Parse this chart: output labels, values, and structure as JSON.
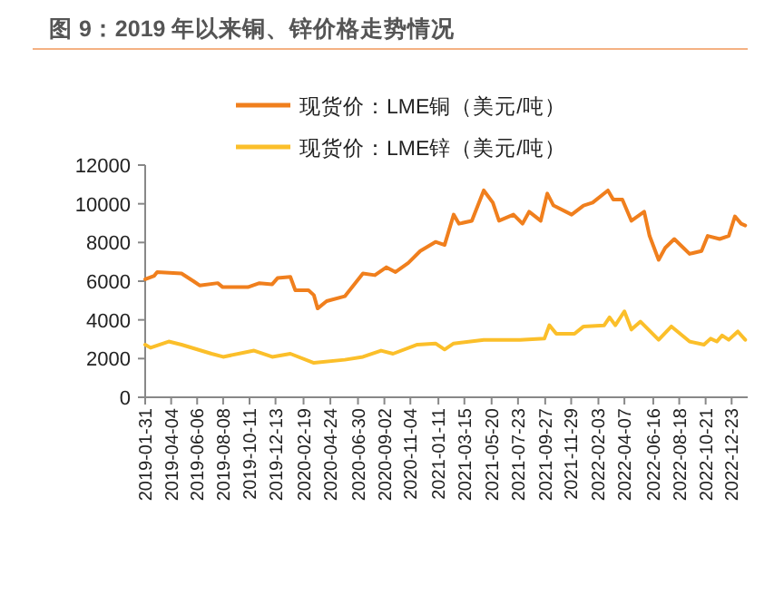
{
  "chart_data": {
    "type": "line",
    "title": "图 9：2019 年以来铜、锌价格走势情况",
    "legend": "top",
    "xlim": [
      "2019-01-31",
      "2023-01-31"
    ],
    "xticks": [
      "2019-01-31",
      "2019-04-04",
      "2019-06-06",
      "2019-08-08",
      "2019-10-11",
      "2019-12-13",
      "2020-02-19",
      "2020-04-24",
      "2020-06-30",
      "2020-09-02",
      "2020-11-04",
      "2021-01-11",
      "2021-03-15",
      "2021-05-20",
      "2021-07-23",
      "2021-09-27",
      "2021-11-29",
      "2022-02-03",
      "2022-04-07",
      "2022-06-16",
      "2022-08-18",
      "2022-10-21",
      "2022-12-23"
    ],
    "ylim": [
      0,
      12000
    ],
    "yticks": [
      0,
      2000,
      4000,
      6000,
      8000,
      10000,
      12000
    ],
    "series": [
      {
        "name": "现货价：LME铜（美元/吨）",
        "color": "#f07f1d",
        "x": [
          "2019-01-31",
          "2019-02-22",
          "2019-03-01",
          "2019-04-29",
          "2019-05-28",
          "2019-06-12",
          "2019-07-26",
          "2019-08-07",
          "2019-10-07",
          "2019-11-04",
          "2019-12-05",
          "2019-12-18",
          "2020-01-18",
          "2020-01-30",
          "2020-03-02",
          "2020-03-15",
          "2020-03-24",
          "2020-04-15",
          "2020-05-29",
          "2020-07-12",
          "2020-08-10",
          "2020-09-07",
          "2020-09-29",
          "2020-10-30",
          "2020-11-28",
          "2021-01-04",
          "2021-01-26",
          "2021-02-17",
          "2021-03-02",
          "2021-04-02",
          "2021-05-01",
          "2021-05-23",
          "2021-06-07",
          "2021-07-12",
          "2021-08-03",
          "2021-08-19",
          "2021-09-16",
          "2021-10-02",
          "2021-10-17",
          "2021-11-30",
          "2021-12-29",
          "2022-01-20",
          "2022-02-26",
          "2022-03-11",
          "2022-04-02",
          "2022-04-24",
          "2022-05-25",
          "2022-06-07",
          "2022-06-29",
          "2022-07-15",
          "2022-08-06",
          "2022-08-28",
          "2022-09-12",
          "2022-10-11",
          "2022-10-26",
          "2022-11-24",
          "2022-12-16",
          "2022-12-31",
          "2023-01-15",
          "2023-01-25"
        ],
        "values": [
          6100,
          6280,
          6470,
          6400,
          6000,
          5780,
          5900,
          5690,
          5690,
          5900,
          5840,
          6160,
          6220,
          5530,
          5530,
          5280,
          4590,
          4970,
          5220,
          6400,
          6310,
          6720,
          6470,
          6940,
          7560,
          8030,
          7870,
          9440,
          8970,
          9120,
          10690,
          10060,
          9120,
          9440,
          8970,
          9590,
          9120,
          10530,
          9910,
          9440,
          9910,
          10060,
          10690,
          10220,
          10220,
          9120,
          9590,
          8340,
          7100,
          7720,
          8180,
          7720,
          7410,
          7560,
          8340,
          8180,
          8340,
          9350,
          8970,
          8880
        ]
      },
      {
        "name": "现货价：LME锌（美元/吨）",
        "color": "#fbbf2a",
        "x": [
          "2019-01-31",
          "2019-02-13",
          "2019-03-29",
          "2019-04-29",
          "2019-07-11",
          "2019-08-08",
          "2019-10-22",
          "2019-12-05",
          "2020-01-18",
          "2020-03-15",
          "2020-05-29",
          "2020-07-12",
          "2020-08-25",
          "2020-09-23",
          "2020-11-21",
          "2021-01-04",
          "2021-01-26",
          "2021-02-17",
          "2021-05-01",
          "2021-07-28",
          "2021-09-25",
          "2021-10-07",
          "2021-10-24",
          "2021-12-07",
          "2021-12-29",
          "2022-02-17",
          "2022-03-02",
          "2022-03-16",
          "2022-04-07",
          "2022-04-24",
          "2022-05-16",
          "2022-06-29",
          "2022-07-30",
          "2022-09-12",
          "2022-10-17",
          "2022-11-02",
          "2022-11-17",
          "2022-11-30",
          "2022-12-16",
          "2023-01-07",
          "2023-01-25"
        ],
        "values": [
          2720,
          2560,
          2880,
          2720,
          2250,
          2090,
          2410,
          2090,
          2250,
          1780,
          1940,
          2090,
          2410,
          2250,
          2720,
          2780,
          2470,
          2780,
          2970,
          2970,
          3030,
          3720,
          3280,
          3280,
          3660,
          3720,
          4130,
          3720,
          4440,
          3500,
          3910,
          2970,
          3660,
          2880,
          2720,
          3030,
          2880,
          3190,
          2970,
          3400,
          2970
        ]
      }
    ]
  }
}
